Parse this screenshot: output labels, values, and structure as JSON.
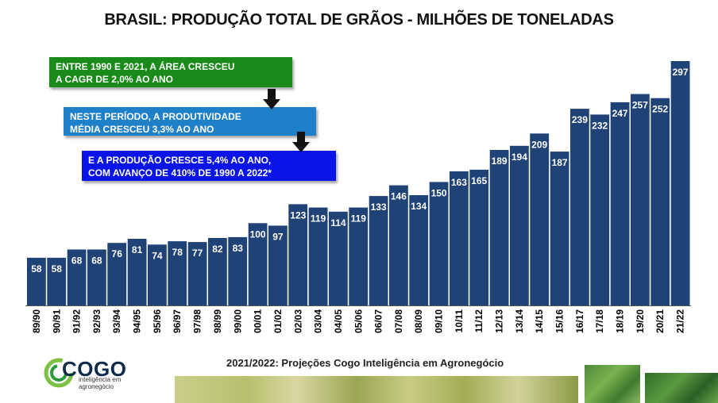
{
  "header": {
    "title": "BRASIL: PRODUÇÃO TOTAL DE GRÃOS - MILHÕES DE TONELADAS"
  },
  "annotations": [
    {
      "lines": [
        "ENTRE 1990 E 2021, A ÁREA CRESCEU",
        "A CAGR DE 2,0% AO ANO"
      ],
      "color": "#1a8a1a"
    },
    {
      "lines": [
        "NESTE PERÍODO, A PRODUTIVIDADE",
        "MÉDIA CRESCEU 3,3% AO ANO"
      ],
      "color": "#1e80c8"
    },
    {
      "lines": [
        "E A PRODUÇÃO CRESCE 5,4% AO ANO,",
        "COM AVANÇO DE 410% DE 1990 A 2022*"
      ],
      "color": "#0a14e6"
    }
  ],
  "footnote": "2021/2022: Projeções Cogo Inteligência em Agronegócio",
  "logo": {
    "name": "COGO",
    "tagline": "inteligência em agronegócio"
  },
  "colors": {
    "bar": "#1f4277",
    "bar_label": "#ffffff",
    "axis_label": "#000000"
  },
  "chart_data": {
    "type": "bar",
    "title": "BRASIL: PRODUÇÃO TOTAL DE GRÃOS - MILHÕES DE TONELADAS",
    "xlabel": "",
    "ylabel": "",
    "categories": [
      "89/90",
      "90/91",
      "91/92",
      "92/93",
      "93/94",
      "94/95",
      "95/96",
      "96/97",
      "97/98",
      "98/99",
      "99/00",
      "00/01",
      "01/02",
      "02/03",
      "03/04",
      "04/05",
      "05/06",
      "06/07",
      "07/08",
      "08/09",
      "09/10",
      "10/11",
      "11/12",
      "12/13",
      "13/14",
      "14/15",
      "15/16",
      "16/17",
      "17/18",
      "18/19",
      "19/20",
      "20/21",
      "21/22"
    ],
    "values": [
      58,
      58,
      68,
      68,
      76,
      81,
      74,
      78,
      77,
      82,
      83,
      100,
      97,
      123,
      119,
      114,
      119,
      133,
      146,
      134,
      150,
      163,
      165,
      189,
      194,
      209,
      187,
      239,
      232,
      247,
      257,
      252,
      297
    ],
    "ylim": [
      0,
      297
    ],
    "grid": false,
    "data_labels": true
  }
}
